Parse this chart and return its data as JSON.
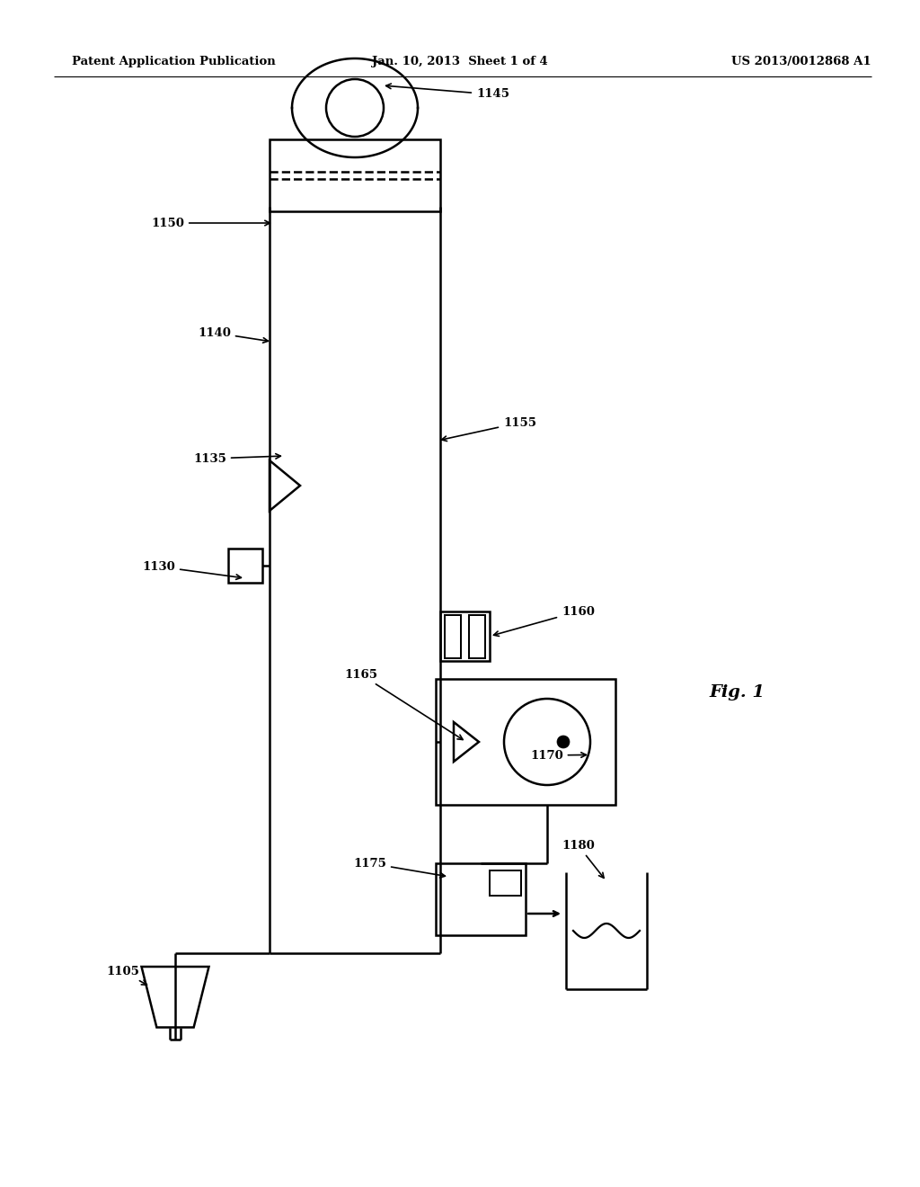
{
  "background_color": "#ffffff",
  "header_left": "Patent Application Publication",
  "header_center": "Jan. 10, 2013  Sheet 1 of 4",
  "header_right": "US 2013/0012868 A1",
  "fig_label": "Fig. 1",
  "line_color": "#000000",
  "lw": 1.8
}
